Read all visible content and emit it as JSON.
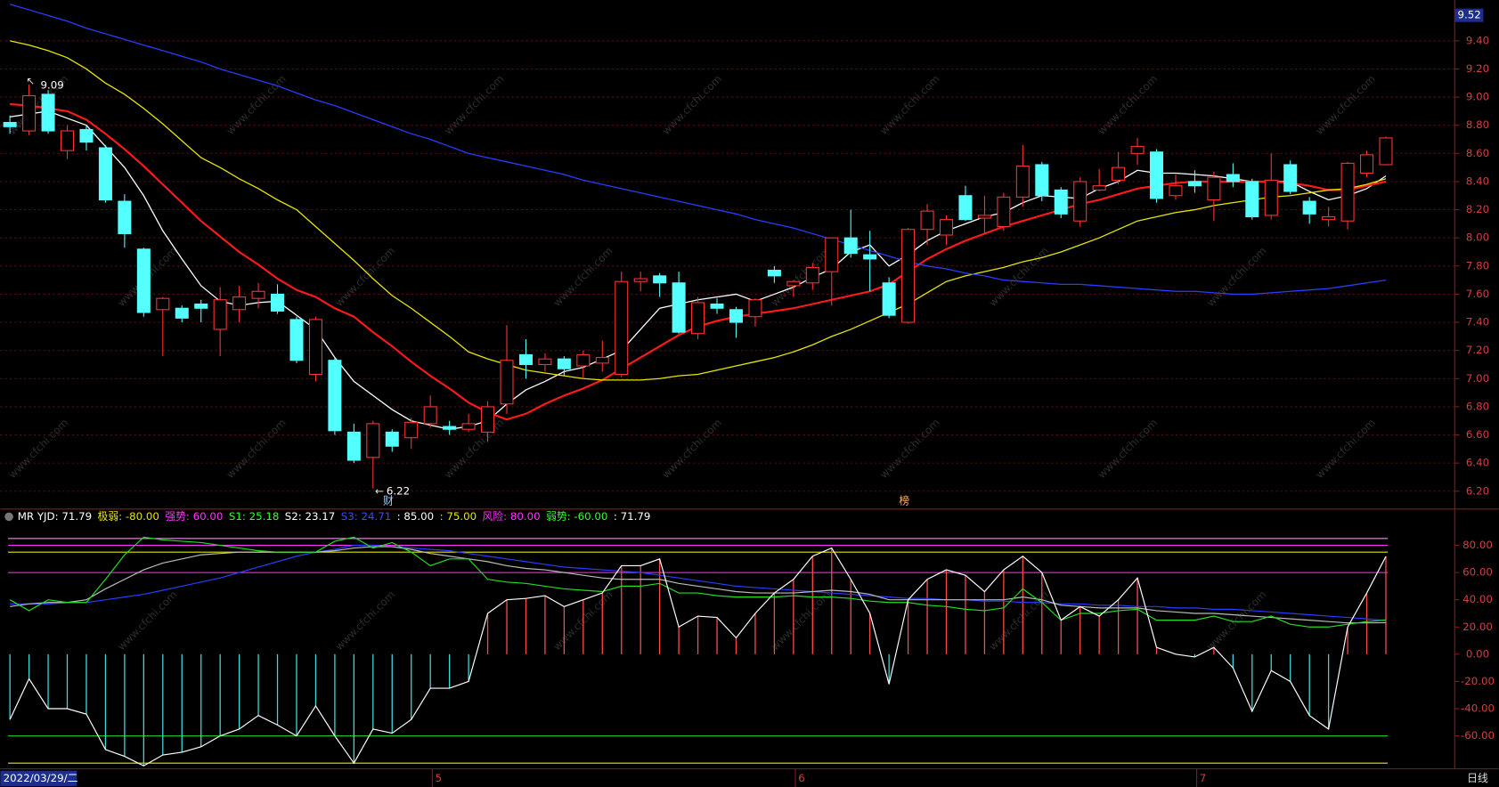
{
  "chart_data": [
    {
      "type": "candlestick",
      "open": [
        8.82,
        8.76,
        9.02,
        8.62,
        8.77,
        8.64,
        8.26,
        7.92,
        7.49,
        7.5,
        7.53,
        7.35,
        7.49,
        7.57,
        7.6,
        7.42,
        7.03,
        7.13,
        6.62,
        6.44,
        6.62,
        6.58,
        6.68,
        6.66,
        6.64,
        6.62,
        6.82,
        7.17,
        7.1,
        7.14,
        7.09,
        7.11,
        7.03,
        7.69,
        7.73,
        7.68,
        7.32,
        7.53,
        7.49,
        7.44,
        7.77,
        7.66,
        7.68,
        7.76,
        8.0,
        7.88,
        7.68,
        7.4,
        8.06,
        8.02,
        8.3,
        8.14,
        8.08,
        8.29,
        8.52,
        8.34,
        8.12,
        8.34,
        8.41,
        8.6,
        8.61,
        8.3,
        8.4,
        8.27,
        8.45,
        8.4,
        8.16,
        8.52,
        8.26,
        8.13,
        8.12,
        8.46,
        8.52
      ],
      "high": [
        8.87,
        9.09,
        9.05,
        8.8,
        8.8,
        8.66,
        8.31,
        7.93,
        7.58,
        7.52,
        7.56,
        7.65,
        7.66,
        7.68,
        7.67,
        7.44,
        7.44,
        7.15,
        6.68,
        6.7,
        6.64,
        6.72,
        6.88,
        6.7,
        6.75,
        6.84,
        7.38,
        7.28,
        7.18,
        7.16,
        7.2,
        7.27,
        7.76,
        7.76,
        7.75,
        7.76,
        7.58,
        7.57,
        7.51,
        7.57,
        7.8,
        7.7,
        7.82,
        8.0,
        8.2,
        8.05,
        7.72,
        8.07,
        8.24,
        8.16,
        8.37,
        8.3,
        8.32,
        8.66,
        8.54,
        8.36,
        8.43,
        8.49,
        8.61,
        8.71,
        8.63,
        8.45,
        8.48,
        8.47,
        8.53,
        8.42,
        8.6,
        8.55,
        8.29,
        8.22,
        8.54,
        8.62,
        8.72
      ],
      "low": [
        8.74,
        8.73,
        8.74,
        8.56,
        8.62,
        8.25,
        7.93,
        7.44,
        7.16,
        7.4,
        7.4,
        7.16,
        7.4,
        7.5,
        7.46,
        7.11,
        6.98,
        6.6,
        6.4,
        6.22,
        6.48,
        6.5,
        6.65,
        6.6,
        6.62,
        6.55,
        6.75,
        7.0,
        7.05,
        7.02,
        7.0,
        7.05,
        7.01,
        7.62,
        7.58,
        7.32,
        7.28,
        7.46,
        7.29,
        7.37,
        7.68,
        7.58,
        7.63,
        7.52,
        7.86,
        7.62,
        7.43,
        7.39,
        7.95,
        7.95,
        8.12,
        8.03,
        8.05,
        8.22,
        8.26,
        8.14,
        8.08,
        8.33,
        8.38,
        8.52,
        8.25,
        8.27,
        8.32,
        8.12,
        8.36,
        8.13,
        8.13,
        8.31,
        8.1,
        8.08,
        8.06,
        8.43,
        8.52
      ],
      "close": [
        8.79,
        9.01,
        8.76,
        8.76,
        8.68,
        8.27,
        8.03,
        7.47,
        7.57,
        7.43,
        7.5,
        7.56,
        7.58,
        7.62,
        7.48,
        7.13,
        7.42,
        6.63,
        6.42,
        6.68,
        6.52,
        6.69,
        6.8,
        6.64,
        6.68,
        6.8,
        7.13,
        7.1,
        7.14,
        7.07,
        7.17,
        7.15,
        7.69,
        7.71,
        7.68,
        7.33,
        7.54,
        7.5,
        7.4,
        7.56,
        7.73,
        7.69,
        7.79,
        8.0,
        7.89,
        7.85,
        7.45,
        8.06,
        8.19,
        8.13,
        8.13,
        8.16,
        8.29,
        8.51,
        8.3,
        8.17,
        8.4,
        8.37,
        8.5,
        8.65,
        8.28,
        8.37,
        8.37,
        8.43,
        8.4,
        8.15,
        8.41,
        8.33,
        8.17,
        8.15,
        8.53,
        8.59,
        8.71
      ],
      "up_color": "#ff3232",
      "down_color": "#54ffff",
      "series": [
        {
          "color": "#ffffff",
          "values": [
            8.86,
            8.88,
            8.9,
            8.85,
            8.8,
            8.65,
            8.5,
            8.3,
            8.05,
            7.85,
            7.66,
            7.55,
            7.52,
            7.54,
            7.55,
            7.45,
            7.35,
            7.15,
            6.98,
            6.88,
            6.78,
            6.7,
            6.67,
            6.64,
            6.66,
            6.7,
            6.82,
            6.92,
            6.98,
            7.05,
            7.08,
            7.14,
            7.2,
            7.35,
            7.5,
            7.53,
            7.56,
            7.58,
            7.6,
            7.55,
            7.6,
            7.65,
            7.72,
            7.78,
            7.9,
            7.95,
            7.8,
            7.88,
            7.98,
            8.05,
            8.1,
            8.15,
            8.18,
            8.25,
            8.3,
            8.29,
            8.28,
            8.35,
            8.4,
            8.48,
            8.46,
            8.46,
            8.45,
            8.44,
            8.42,
            8.4,
            8.4,
            8.4,
            8.33,
            8.27,
            8.3,
            8.35,
            8.44
          ]
        },
        {
          "color": "#ff1a1a",
          "values": [
            8.95,
            8.94,
            8.92,
            8.9,
            8.84,
            8.74,
            8.63,
            8.51,
            8.38,
            8.25,
            8.12,
            8.01,
            7.9,
            7.81,
            7.71,
            7.63,
            7.58,
            7.5,
            7.44,
            7.33,
            7.23,
            7.12,
            7.02,
            6.93,
            6.83,
            6.76,
            6.71,
            6.75,
            6.82,
            6.88,
            6.93,
            6.99,
            7.07,
            7.15,
            7.23,
            7.31,
            7.37,
            7.41,
            7.44,
            7.46,
            7.48,
            7.5,
            7.53,
            7.56,
            7.59,
            7.62,
            7.67,
            7.76,
            7.85,
            7.92,
            7.98,
            8.03,
            8.08,
            8.12,
            8.16,
            8.2,
            8.24,
            8.27,
            8.31,
            8.35,
            8.37,
            8.39,
            8.4,
            8.4,
            8.4,
            8.4,
            8.4,
            8.39,
            8.37,
            8.34,
            8.34,
            8.37,
            8.4
          ]
        },
        {
          "color": "#e6e600",
          "values": [
            9.4,
            9.37,
            9.33,
            9.28,
            9.2,
            9.1,
            9.02,
            8.92,
            8.81,
            8.69,
            8.57,
            8.5,
            8.42,
            8.35,
            8.27,
            8.2,
            8.08,
            7.96,
            7.84,
            7.71,
            7.59,
            7.5,
            7.4,
            7.3,
            7.19,
            7.14,
            7.1,
            7.06,
            7.04,
            7.02,
            7.0,
            6.99,
            6.99,
            6.99,
            7.0,
            7.02,
            7.03,
            7.06,
            7.09,
            7.12,
            7.15,
            7.19,
            7.24,
            7.3,
            7.35,
            7.41,
            7.47,
            7.53,
            7.61,
            7.69,
            7.73,
            7.76,
            7.79,
            7.83,
            7.86,
            7.9,
            7.95,
            8.0,
            8.06,
            8.12,
            8.15,
            8.18,
            8.2,
            8.23,
            8.25,
            8.27,
            8.29,
            8.3,
            8.32,
            8.34,
            8.35,
            8.38,
            8.42
          ]
        },
        {
          "color": "#2a3cff",
          "values": [
            9.66,
            9.62,
            9.58,
            9.54,
            9.49,
            9.45,
            9.41,
            9.37,
            9.33,
            9.29,
            9.25,
            9.2,
            9.16,
            9.12,
            9.08,
            9.03,
            8.98,
            8.94,
            8.89,
            8.84,
            8.79,
            8.74,
            8.7,
            8.65,
            8.6,
            8.57,
            8.54,
            8.51,
            8.48,
            8.45,
            8.41,
            8.38,
            8.35,
            8.32,
            8.29,
            8.26,
            8.23,
            8.2,
            8.17,
            8.13,
            8.1,
            8.07,
            8.03,
            7.99,
            7.95,
            7.91,
            7.87,
            7.83,
            7.8,
            7.78,
            7.75,
            7.73,
            7.7,
            7.69,
            7.68,
            7.67,
            7.67,
            7.66,
            7.65,
            7.64,
            7.63,
            7.62,
            7.62,
            7.61,
            7.6,
            7.6,
            7.61,
            7.62,
            7.63,
            7.64,
            7.66,
            7.68,
            7.7
          ]
        }
      ],
      "ylim": [
        6.08,
        9.69
      ],
      "yticks": [
        {
          "value": 9.4,
          "label": "9.40"
        },
        {
          "value": 9.2,
          "label": "9.20"
        },
        {
          "value": 9.0,
          "label": "9.00"
        },
        {
          "value": 8.8,
          "label": "8.80"
        },
        {
          "value": 8.6,
          "label": "8.60"
        },
        {
          "value": 8.4,
          "label": "8.40"
        },
        {
          "value": 8.2,
          "label": "8.20"
        },
        {
          "value": 8.0,
          "label": "8.00"
        },
        {
          "value": 7.8,
          "label": "7.80"
        },
        {
          "value": 7.6,
          "label": "7.60"
        },
        {
          "value": 7.4,
          "label": "7.40"
        },
        {
          "value": 7.2,
          "label": "7.20"
        },
        {
          "value": 7.0,
          "label": "7.00"
        },
        {
          "value": 6.8,
          "label": "6.80"
        },
        {
          "value": 6.6,
          "label": "6.60"
        },
        {
          "value": 6.4,
          "label": "6.40"
        },
        {
          "value": 6.2,
          "label": "6.20"
        }
      ],
      "top_price": 9.52,
      "grid": true,
      "markers": [
        {
          "text": "财",
          "index": 20
        },
        {
          "text": "榜",
          "index": 47
        }
      ],
      "watermark": "www.cfchi.com"
    },
    {
      "type": "indicator",
      "header": [
        {
          "text": "MR YJD: 71.79",
          "color": "#ffffff"
        },
        {
          "text": "极弱: -80.00",
          "color": "#e6e600"
        },
        {
          "text": "强势: 60.00",
          "color": "#ff33ff"
        },
        {
          "text": "S1: 25.18",
          "color": "#33ff33"
        },
        {
          "text": "S2: 23.17",
          "color": "#ffffff"
        },
        {
          "text": "S3: 24.71",
          "color": "#3b4bff"
        },
        {
          "text": ": 85.00",
          "color": "#ffffff"
        },
        {
          "text": ": 75.00",
          "color": "#e6e600"
        },
        {
          "text": "风险: 80.00",
          "color": "#ff33ff"
        },
        {
          "text": "弱势: -60.00",
          "color": "#33ff33"
        },
        {
          "text": ": 71.79",
          "color": "#ffffff"
        }
      ],
      "bar_up_color": "#ff4a4a",
      "bar_down_color": "#3fd8d8",
      "series": [
        {
          "color": "#ffffff",
          "values": [
            -48,
            -18,
            -40,
            -40,
            -44,
            -70,
            -75,
            -82,
            -74,
            -72,
            -68,
            -60,
            -55,
            -45,
            -52,
            -60,
            -38,
            -60,
            -80,
            -55,
            -58,
            -48,
            -25,
            -25,
            -20,
            30,
            40,
            41,
            43,
            35,
            40,
            45,
            65,
            65,
            70,
            20,
            28,
            27,
            12,
            30,
            45,
            55,
            72,
            78,
            55,
            30,
            -22,
            40,
            55,
            62,
            58,
            46,
            62,
            72,
            60,
            25,
            35,
            28,
            40,
            56,
            5,
            0,
            -2,
            5,
            -10,
            -42,
            -12,
            -20,
            -45,
            -55,
            20,
            45,
            71.79
          ]
        },
        {
          "color": "#22dd22",
          "values": [
            40,
            32,
            40,
            38,
            38,
            55,
            73,
            86,
            84,
            83,
            82,
            80,
            78,
            76,
            75,
            75,
            75,
            83,
            86,
            78,
            82,
            75,
            65,
            70,
            70,
            55,
            53,
            52,
            50,
            48,
            47,
            46,
            50,
            50,
            52,
            45,
            45,
            43,
            42,
            42,
            42,
            43,
            42,
            42,
            41,
            39,
            38,
            38,
            36,
            35,
            33,
            32,
            34,
            48,
            38,
            25,
            30,
            30,
            32,
            33,
            25,
            25,
            25,
            28,
            24,
            24,
            28,
            22,
            20,
            20,
            22,
            24,
            25.18
          ]
        },
        {
          "color": "#bbbbbb",
          "values": [
            35,
            37,
            38,
            38,
            40,
            48,
            55,
            62,
            67,
            70,
            73,
            74,
            75,
            75,
            75,
            75,
            75,
            76,
            78,
            79,
            79,
            77,
            74,
            72,
            70,
            68,
            65,
            63,
            62,
            60,
            58,
            56,
            55,
            55,
            55,
            52,
            50,
            48,
            46,
            45,
            45,
            45,
            46,
            47,
            46,
            44,
            40,
            40,
            40,
            40,
            40,
            40,
            40,
            42,
            40,
            36,
            35,
            34,
            34,
            34,
            32,
            31,
            30,
            30,
            29,
            28,
            27,
            26,
            25,
            24,
            23,
            23,
            23.17
          ]
        },
        {
          "color": "#2a3cff",
          "values": [
            37,
            37,
            37,
            38,
            38,
            40,
            42,
            44,
            47,
            50,
            53,
            56,
            60,
            64,
            68,
            72,
            75,
            77,
            80,
            80,
            79,
            78,
            77,
            76,
            74,
            72,
            70,
            68,
            66,
            64,
            63,
            62,
            61,
            60,
            58,
            56,
            54,
            52,
            50,
            49,
            48,
            47,
            46,
            45,
            44,
            43,
            42,
            41,
            41,
            40,
            40,
            39,
            39,
            38,
            38,
            37,
            37,
            36,
            36,
            35,
            35,
            34,
            34,
            33,
            33,
            32,
            31,
            30,
            29,
            28,
            27,
            26,
            24.71
          ]
        }
      ],
      "levels": [
        {
          "value": 85,
          "color": "#ffaaff"
        },
        {
          "value": 80,
          "color": "#ff33ff"
        },
        {
          "value": 75,
          "color": "#e6e600"
        },
        {
          "value": 60,
          "color": "#ff33ff"
        },
        {
          "value": -60,
          "color": "#22dd22"
        },
        {
          "value": -80,
          "color": "#e6e600"
        }
      ],
      "ylim": [
        -84.2,
        96.1
      ],
      "yticks": [
        {
          "value": 80,
          "label": "80.00"
        },
        {
          "value": 60,
          "label": "60.00"
        },
        {
          "value": 40,
          "label": "40.00"
        },
        {
          "value": 20,
          "label": "20.00"
        },
        {
          "value": 0,
          "label": "0.00"
        },
        {
          "value": -20,
          "label": "-20.00"
        },
        {
          "value": -40,
          "label": "-40.00"
        },
        {
          "value": -60,
          "label": "-60.00"
        }
      ],
      "date": "2022/03/29/二",
      "month_marks": [
        {
          "label": "5",
          "index": 22
        },
        {
          "label": "6",
          "index": 41
        },
        {
          "label": "7",
          "index": 62
        }
      ],
      "period": "日线"
    }
  ]
}
